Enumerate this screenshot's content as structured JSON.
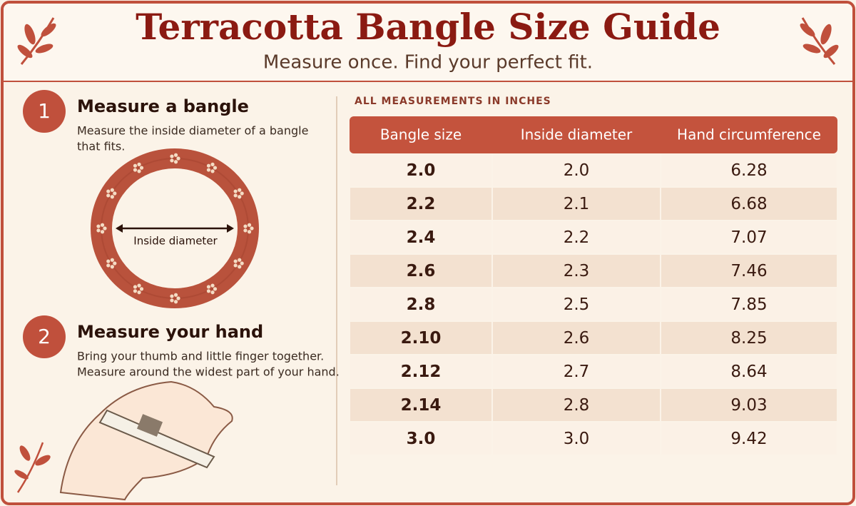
{
  "header": {
    "title": "Terracotta Bangle Size Guide",
    "subtitle": "Measure once. Find your perfect fit."
  },
  "steps": [
    {
      "number": "1",
      "title": "Measure a bangle",
      "lines": [
        "Measure the inside diameter of a bangle",
        "that fits."
      ]
    },
    {
      "number": "2",
      "title": "Measure your hand",
      "lines": [
        "Bring your thumb and little finger together.",
        "Measure around the widest part of your hand."
      ]
    }
  ],
  "illustration": {
    "label": "Inside diameter"
  },
  "table": {
    "note": "ALL MEASUREMENTS IN INCHES",
    "columns": [
      "Bangle size",
      "Inside diameter",
      "Hand circumference"
    ],
    "rows": [
      [
        "2.0",
        "2.0",
        "6.28"
      ],
      [
        "2.2",
        "2.1",
        "6.68"
      ],
      [
        "2.4",
        "2.2",
        "7.07"
      ],
      [
        "2.6",
        "2.3",
        "7.46"
      ],
      [
        "2.8",
        "2.5",
        "7.85"
      ],
      [
        "2.10",
        "2.6",
        "8.25"
      ],
      [
        "2.12",
        "2.7",
        "8.64"
      ],
      [
        "2.14",
        "2.8",
        "9.03"
      ],
      [
        "3.0",
        "3.0",
        "9.42"
      ]
    ]
  }
}
